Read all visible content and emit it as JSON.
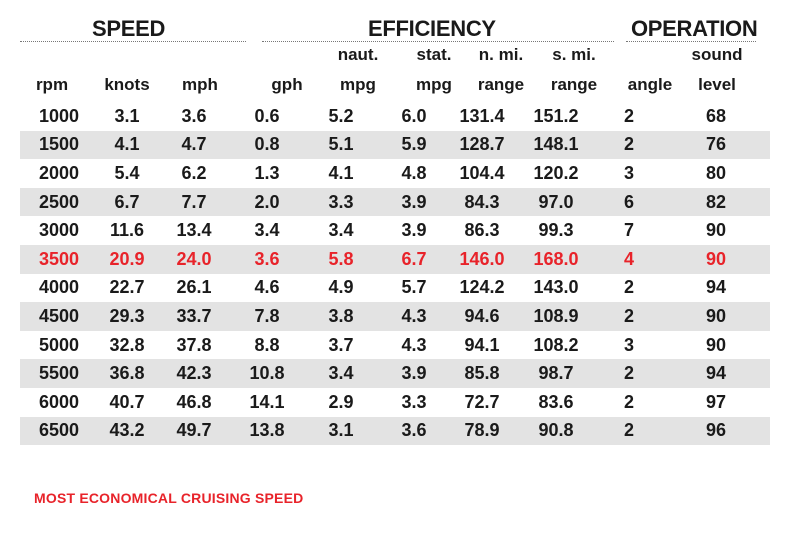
{
  "groups": {
    "speed": "SPEED",
    "efficiency": "EFFICIENCY",
    "operation": "OPERATION"
  },
  "columns": [
    {
      "top": "",
      "bottom": "rpm"
    },
    {
      "top": "",
      "bottom": "knots"
    },
    {
      "top": "",
      "bottom": "mph"
    },
    {
      "top": "",
      "bottom": "gph"
    },
    {
      "top": "naut.",
      "bottom": "mpg"
    },
    {
      "top": "stat.",
      "bottom": "mpg"
    },
    {
      "top": "n. mi.",
      "bottom": "range"
    },
    {
      "top": "s. mi.",
      "bottom": "range"
    },
    {
      "top": "",
      "bottom": "angle"
    },
    {
      "top": "sound",
      "bottom": "level"
    }
  ],
  "rows": [
    [
      "1000",
      "3.1",
      "3.6",
      "0.6",
      "5.2",
      "6.0",
      "131.4",
      "151.2",
      "2",
      "68"
    ],
    [
      "1500",
      "4.1",
      "4.7",
      "0.8",
      "5.1",
      "5.9",
      "128.7",
      "148.1",
      "2",
      "76"
    ],
    [
      "2000",
      "5.4",
      "6.2",
      "1.3",
      "4.1",
      "4.8",
      "104.4",
      "120.2",
      "3",
      "80"
    ],
    [
      "2500",
      "6.7",
      "7.7",
      "2.0",
      "3.3",
      "3.9",
      "84.3",
      "97.0",
      "6",
      "82"
    ],
    [
      "3000",
      "11.6",
      "13.4",
      "3.4",
      "3.4",
      "3.9",
      "86.3",
      "99.3",
      "7",
      "90"
    ],
    [
      "3500",
      "20.9",
      "24.0",
      "3.6",
      "5.8",
      "6.7",
      "146.0",
      "168.0",
      "4",
      "90"
    ],
    [
      "4000",
      "22.7",
      "26.1",
      "4.6",
      "4.9",
      "5.7",
      "124.2",
      "143.0",
      "2",
      "94"
    ],
    [
      "4500",
      "29.3",
      "33.7",
      "7.8",
      "3.8",
      "4.3",
      "94.6",
      "108.9",
      "2",
      "90"
    ],
    [
      "5000",
      "32.8",
      "37.8",
      "8.8",
      "3.7",
      "4.3",
      "94.1",
      "108.2",
      "3",
      "90"
    ],
    [
      "5500",
      "36.8",
      "42.3",
      "10.8",
      "3.4",
      "3.9",
      "85.8",
      "98.7",
      "2",
      "94"
    ],
    [
      "6000",
      "40.7",
      "46.8",
      "14.1",
      "2.9",
      "3.3",
      "72.7",
      "83.6",
      "2",
      "97"
    ],
    [
      "6500",
      "43.2",
      "49.7",
      "13.8",
      "3.1",
      "3.6",
      "78.9",
      "90.8",
      "2",
      "96"
    ]
  ],
  "highlight_rpm": "3500",
  "highlight_color": "#e8232a",
  "stripe_color": "#e3e3e3",
  "footnote": "MOST ECONOMICAL CRUISING SPEED"
}
